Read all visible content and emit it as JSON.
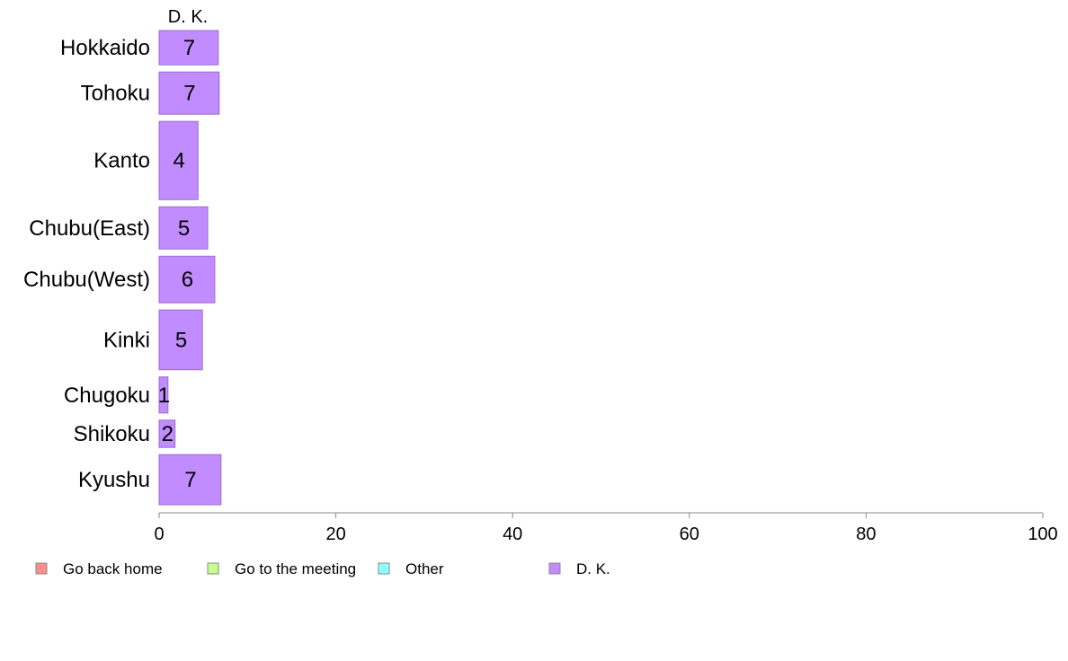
{
  "chart_data": {
    "type": "bar",
    "orientation": "horizontal",
    "stacked": true,
    "title": "",
    "xlabel": "",
    "ylabel": "",
    "xlim": [
      0,
      100
    ],
    "x_ticks": [
      0,
      20,
      40,
      60,
      80,
      100
    ],
    "grid": false,
    "legend_position": "bottom",
    "column_header": "D. K.",
    "categories": [
      "Hokkaido",
      "Tohoku",
      "Kanto",
      "Chubu(East)",
      "Chubu(West)",
      "Kinki",
      "Chugoku",
      "Shikoku",
      "Kyushu"
    ],
    "category_weights": [
      0.78,
      0.96,
      1.78,
      0.96,
      1.06,
      1.36,
      0.82,
      0.62,
      1.14
    ],
    "series": [
      {
        "name": "Go back home",
        "color": "#ff8c8c",
        "values": [
          0,
          0,
          0,
          0,
          0,
          0,
          0,
          0,
          0
        ]
      },
      {
        "name": "Go to the meeting",
        "color": "#c6ff8c",
        "values": [
          0,
          0,
          0,
          0,
          0,
          0,
          0,
          0,
          0
        ]
      },
      {
        "name": "Other",
        "color": "#8cffff",
        "values": [
          0,
          0,
          0,
          0,
          0,
          0,
          0,
          0,
          0
        ]
      },
      {
        "name": "D. K.",
        "color": "#c08cff",
        "values": [
          6.7,
          6.8,
          4.4,
          5.5,
          6.3,
          4.9,
          1.0,
          1.8,
          7.0
        ],
        "labels": [
          "7",
          "7",
          "4",
          "5",
          "6",
          "5",
          "1",
          "2",
          "7"
        ]
      }
    ]
  }
}
